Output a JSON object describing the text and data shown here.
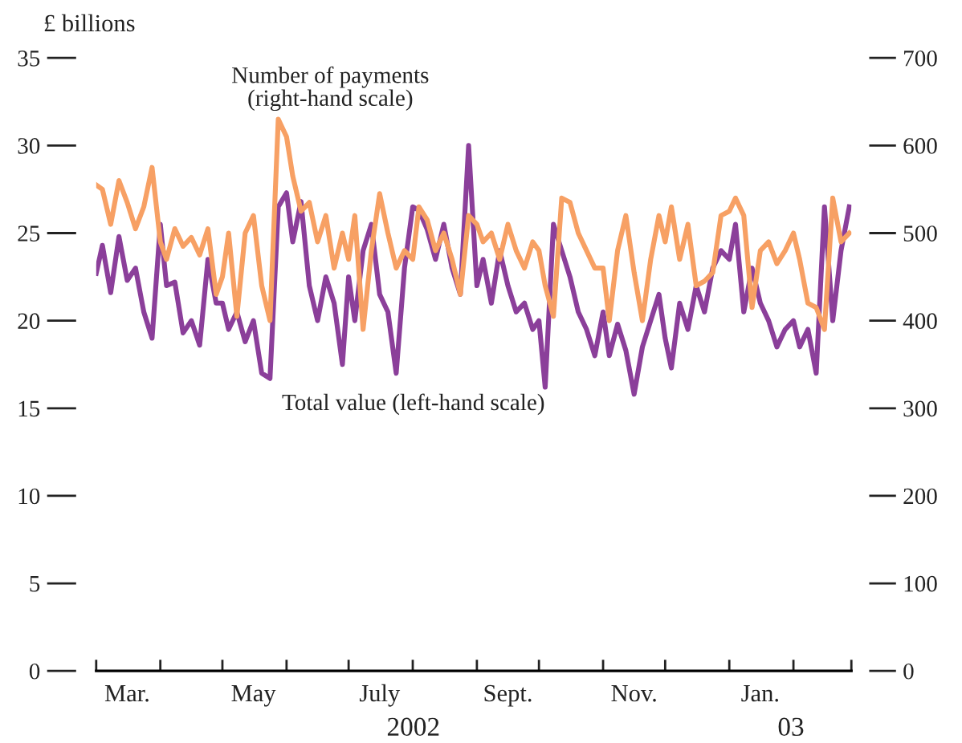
{
  "chart_data": {
    "type": "line",
    "ylabel": "£ billions",
    "x": [
      "2002-03-01",
      "2002-03-04",
      "2002-03-08",
      "2002-03-12",
      "2002-03-16",
      "2002-03-20",
      "2002-03-24",
      "2002-03-28",
      "2002-04-01",
      "2002-04-04",
      "2002-04-08",
      "2002-04-12",
      "2002-04-16",
      "2002-04-20",
      "2002-04-24",
      "2002-04-28",
      "2002-05-01",
      "2002-05-04",
      "2002-05-08",
      "2002-05-12",
      "2002-05-16",
      "2002-05-20",
      "2002-05-24",
      "2002-05-28",
      "2002-06-01",
      "2002-06-04",
      "2002-06-08",
      "2002-06-12",
      "2002-06-16",
      "2002-06-20",
      "2002-06-24",
      "2002-06-28",
      "2002-07-01",
      "2002-07-04",
      "2002-07-08",
      "2002-07-12",
      "2002-07-16",
      "2002-07-20",
      "2002-07-24",
      "2002-07-28",
      "2002-08-01",
      "2002-08-04",
      "2002-08-08",
      "2002-08-12",
      "2002-08-16",
      "2002-08-20",
      "2002-08-24",
      "2002-08-28",
      "2002-09-01",
      "2002-09-04",
      "2002-09-08",
      "2002-09-12",
      "2002-09-16",
      "2002-09-20",
      "2002-09-24",
      "2002-09-28",
      "2002-10-01",
      "2002-10-04",
      "2002-10-08",
      "2002-10-12",
      "2002-10-16",
      "2002-10-20",
      "2002-10-24",
      "2002-10-28",
      "2002-11-01",
      "2002-11-04",
      "2002-11-08",
      "2002-11-12",
      "2002-11-16",
      "2002-11-20",
      "2002-11-24",
      "2002-11-28",
      "2002-12-01",
      "2002-12-04",
      "2002-12-08",
      "2002-12-12",
      "2002-12-16",
      "2002-12-20",
      "2002-12-24",
      "2002-12-28",
      "2003-01-01",
      "2003-01-04",
      "2003-01-08",
      "2003-01-12",
      "2003-01-16",
      "2003-01-20",
      "2003-01-24",
      "2003-01-28",
      "2003-02-01",
      "2003-02-04",
      "2003-02-08",
      "2003-02-12",
      "2003-02-16",
      "2003-02-20",
      "2003-02-24",
      "2003-02-28"
    ],
    "series": [
      {
        "color": "#8b3f9a",
        "values": [
          22.7,
          24.3,
          21.6,
          24.8,
          22.3,
          23,
          20.5,
          19,
          25.5,
          22,
          22.2,
          19.3,
          20,
          18.6,
          23.5,
          21,
          21,
          19.5,
          20.5,
          18.8,
          20,
          17,
          16.7,
          26.5,
          27.3,
          24.5,
          26.8,
          22,
          20,
          22.5,
          21,
          17.5,
          22.5,
          20,
          24,
          25.5,
          21.5,
          20.5,
          17,
          23,
          26.5,
          26.3,
          25.2,
          23.5,
          25.5,
          23,
          21.5,
          30,
          22,
          23.5,
          21,
          24,
          22,
          20.5,
          21,
          19.5,
          20,
          16.2,
          25.5,
          24,
          22.5,
          20.5,
          19.5,
          18,
          20.5,
          18,
          19.8,
          18.3,
          15.8,
          18.5,
          20,
          21.5,
          19,
          17.3,
          21,
          19.5,
          22,
          20.5,
          23,
          24,
          23.5,
          25.5,
          20.5,
          23,
          21,
          20,
          18.5,
          19.5,
          20,
          18.5,
          19.5,
          17,
          26.5,
          20,
          24,
          26.5
        ]
      },
      {
        "color": "#f7a064",
        "axis": "y2",
        "values": [
          555,
          550,
          510,
          560,
          535,
          505,
          530,
          575,
          490,
          470,
          505,
          485,
          495,
          475,
          505,
          430,
          450,
          500,
          405,
          500,
          520,
          440,
          400,
          630,
          610,
          565,
          525,
          535,
          490,
          520,
          460,
          500,
          470,
          520,
          390,
          480,
          545,
          500,
          460,
          480,
          470,
          530,
          515,
          480,
          500,
          470,
          430,
          520,
          510,
          490,
          500,
          470,
          510,
          480,
          460,
          490,
          480,
          440,
          405,
          540,
          535,
          500,
          480,
          460,
          460,
          400,
          480,
          520,
          455,
          400,
          470,
          520,
          490,
          530,
          470,
          510,
          440,
          445,
          455,
          520,
          525,
          540,
          520,
          415,
          480,
          490,
          465,
          480,
          500,
          470,
          420,
          415,
          390,
          540,
          490,
          500
        ]
      }
    ],
    "xlim": [
      "2002-03-01",
      "2003-03-01"
    ],
    "xticks": [
      {
        "value": "2002-03-01",
        "label": null
      },
      {
        "value": "2002-03-16",
        "label": "Mar."
      },
      {
        "value": "2002-04-01",
        "label": null
      },
      {
        "value": "2002-05-01",
        "label": null
      },
      {
        "value": "2002-05-16",
        "label": "May"
      },
      {
        "value": "2002-06-01",
        "label": null
      },
      {
        "value": "2002-07-01",
        "label": null
      },
      {
        "value": "2002-07-16",
        "label": "July"
      },
      {
        "value": "2002-08-01",
        "label": null
      },
      {
        "value": "2002-09-01",
        "label": null
      },
      {
        "value": "2002-09-16",
        "label": "Sept."
      },
      {
        "value": "2002-10-01",
        "label": null
      },
      {
        "value": "2002-11-01",
        "label": null
      },
      {
        "value": "2002-11-16",
        "label": "Nov."
      },
      {
        "value": "2002-12-01",
        "label": null
      },
      {
        "value": "2003-01-01",
        "label": null
      },
      {
        "value": "2003-01-16",
        "label": "Jan."
      },
      {
        "value": "2003-02-01",
        "label": null
      },
      {
        "value": "2003-03-01",
        "label": null
      }
    ],
    "ylim": [
      0,
      35
    ],
    "yticks": [
      0,
      5,
      10,
      15,
      20,
      25,
      30,
      35
    ],
    "y2lim": [
      0,
      700
    ],
    "y2ticks": [
      0,
      100,
      200,
      300,
      400,
      500,
      600,
      700
    ],
    "annotations": [
      "Number of payments\n(right-hand scale)",
      "Total value (left-hand scale)",
      "2002",
      "03"
    ]
  }
}
